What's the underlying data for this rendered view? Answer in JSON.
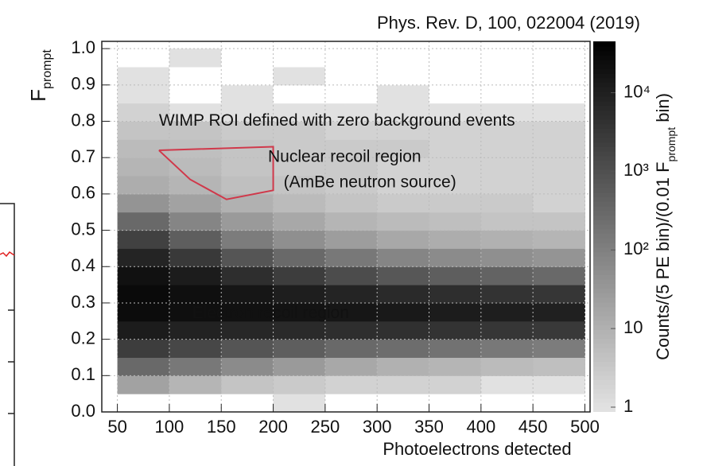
{
  "chart_data": {
    "type": "heatmap",
    "source": "Phys. Rev. D, 100, 022004 (2019)",
    "xlabel": "Photoelectrons detected",
    "ylabel": "F",
    "ylabel_sub": "prompt",
    "colorbar_label": [
      "Counts/(5 PE bin)/(0.01 F",
      "prompt",
      " bin)"
    ],
    "annotations": [
      {
        "text": "WIMP ROI defined with zero background events",
        "x": 90,
        "y": 0.8,
        "color": "#d0384a"
      },
      {
        "text": "Nuclear recoil region",
        "x": 195,
        "y": 0.7,
        "color": "#111111"
      },
      {
        "text": "(AmBe neutron source)",
        "x": 210,
        "y": 0.63,
        "color": "#111111"
      },
      {
        "text": "Electron recoil region",
        "x": 122,
        "y": 0.27,
        "color": "#ffffff"
      }
    ],
    "roi": {
      "x": [
        90,
        200,
        200,
        155,
        120,
        90
      ],
      "y": [
        0.72,
        0.73,
        0.61,
        0.585,
        0.64,
        0.72
      ],
      "color": "#d0384a"
    },
    "xbins": [
      50,
      100,
      150,
      200,
      250,
      300,
      350,
      400,
      450,
      500
    ],
    "ybins": [
      0,
      0.05,
      0.1,
      0.15,
      0.2,
      0.25,
      0.3,
      0.35,
      0.4,
      0.45,
      0.5,
      0.55,
      0.6,
      0.65,
      0.7,
      0.75,
      0.8,
      0.85,
      0.9,
      0.95,
      1
    ],
    "z": [
      [
        0,
        0,
        0,
        1,
        0,
        0,
        0,
        0,
        0
      ],
      [
        20,
        8,
        4,
        3,
        2,
        2,
        2,
        1,
        1
      ],
      [
        300,
        150,
        60,
        30,
        15,
        10,
        8,
        6,
        5
      ],
      [
        2500,
        1500,
        800,
        500,
        300,
        250,
        200,
        150,
        120
      ],
      [
        12000,
        9000,
        7000,
        6000,
        5000,
        4500,
        4000,
        3500,
        3000
      ],
      [
        25000,
        22000,
        20000,
        18000,
        16000,
        14000,
        12000,
        11000,
        10000
      ],
      [
        28000,
        22000,
        16000,
        11000,
        8000,
        6000,
        5000,
        4000,
        3500
      ],
      [
        20000,
        12000,
        5000,
        2500,
        1200,
        700,
        500,
        400,
        300
      ],
      [
        8000,
        3000,
        800,
        300,
        150,
        80,
        60,
        50,
        40
      ],
      [
        2000,
        500,
        120,
        50,
        25,
        15,
        12,
        10,
        8
      ],
      [
        300,
        80,
        30,
        15,
        8,
        6,
        5,
        4,
        4
      ],
      [
        40,
        20,
        10,
        6,
        4,
        3,
        3,
        3,
        2
      ],
      [
        12,
        8,
        5,
        4,
        3,
        2,
        2,
        2,
        2
      ],
      [
        8,
        6,
        4,
        3,
        3,
        2,
        2,
        2,
        2
      ],
      [
        6,
        5,
        4,
        3,
        3,
        3,
        2,
        2,
        2
      ],
      [
        4,
        4,
        3,
        3,
        2,
        2,
        2,
        2,
        2
      ],
      [
        2,
        1,
        1,
        1,
        1,
        1,
        1,
        1,
        1
      ],
      [
        1,
        0,
        1,
        0,
        0,
        1,
        0,
        0,
        0
      ],
      [
        1,
        0,
        0,
        1,
        0,
        0,
        0,
        0,
        0
      ],
      [
        0,
        1,
        0,
        0,
        0,
        0,
        0,
        0,
        0
      ]
    ],
    "xlim": [
      35,
      505
    ],
    "ylim": [
      0,
      1.02
    ],
    "xticks": [
      50,
      100,
      150,
      200,
      250,
      300,
      350,
      400,
      450,
      500
    ],
    "yticks": [
      {
        "value": 0,
        "label": "0.0"
      },
      0.1,
      0.2,
      0.3,
      0.4,
      0.5,
      0.6,
      0.7,
      0.8,
      0.9,
      {
        "value": 1,
        "label": "1.0"
      }
    ],
    "zlim": [
      1,
      45000
    ],
    "zticks": [
      1,
      10,
      {
        "value": 100,
        "label": "10²"
      },
      {
        "value": 1000,
        "label": "10³"
      },
      {
        "value": 10000,
        "label": "10⁴"
      }
    ],
    "zscale": "log",
    "grid": true
  }
}
